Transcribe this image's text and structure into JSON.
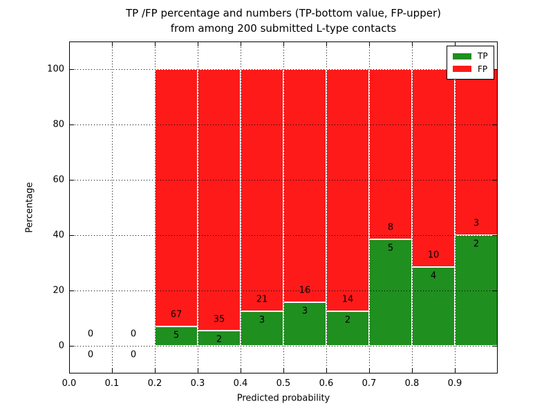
{
  "chart_data": {
    "type": "bar",
    "stacked": true,
    "title_line1": "TP /FP percentage and numbers (TP-bottom value, FP-upper)",
    "title_line2": "from among 200 submitted L-type contacts",
    "xlabel": "Predicted probability",
    "ylabel": "Percentage",
    "xlim": [
      0.0,
      1.0
    ],
    "ylim": [
      -10,
      110
    ],
    "x_ticks": [
      0.0,
      0.1,
      0.2,
      0.3,
      0.4,
      0.5,
      0.6,
      0.7,
      0.8,
      0.9
    ],
    "x_tick_labels": [
      "0.0",
      "0.1",
      "0.2",
      "0.3",
      "0.4",
      "0.5",
      "0.6",
      "0.7",
      "0.8",
      "0.9"
    ],
    "y_ticks": [
      0,
      20,
      40,
      60,
      80,
      100
    ],
    "y_tick_labels": [
      "0",
      "20",
      "40",
      "60",
      "80",
      "100"
    ],
    "grid": true,
    "grid_style": "dotted",
    "legend_position": "upper right",
    "legend": [
      {
        "label": "TP",
        "color": "#1F8F1F"
      },
      {
        "label": "FP",
        "color": "#FF1A1A"
      }
    ],
    "bin_width": 0.1,
    "total_contacts": 200,
    "bins": [
      {
        "start": 0.0,
        "end": 0.1,
        "tp": 0,
        "fp": 0,
        "tp_pct": 0,
        "fp_pct": 0
      },
      {
        "start": 0.1,
        "end": 0.2,
        "tp": 0,
        "fp": 0,
        "tp_pct": 0,
        "fp_pct": 0
      },
      {
        "start": 0.2,
        "end": 0.3,
        "tp": 5,
        "fp": 67,
        "tp_pct": 6.94,
        "fp_pct": 93.06
      },
      {
        "start": 0.3,
        "end": 0.4,
        "tp": 2,
        "fp": 35,
        "tp_pct": 5.41,
        "fp_pct": 94.59
      },
      {
        "start": 0.4,
        "end": 0.5,
        "tp": 3,
        "fp": 21,
        "tp_pct": 12.5,
        "fp_pct": 87.5
      },
      {
        "start": 0.5,
        "end": 0.6,
        "tp": 3,
        "fp": 16,
        "tp_pct": 15.79,
        "fp_pct": 84.21
      },
      {
        "start": 0.6,
        "end": 0.7,
        "tp": 2,
        "fp": 14,
        "tp_pct": 12.5,
        "fp_pct": 87.5
      },
      {
        "start": 0.7,
        "end": 0.8,
        "tp": 5,
        "fp": 8,
        "tp_pct": 38.46,
        "fp_pct": 61.54
      },
      {
        "start": 0.8,
        "end": 0.9,
        "tp": 4,
        "fp": 10,
        "tp_pct": 28.57,
        "fp_pct": 71.43
      },
      {
        "start": 0.9,
        "end": 1.0,
        "tp": 2,
        "fp": 3,
        "tp_pct": 40.0,
        "fp_pct": 60.0
      }
    ]
  }
}
